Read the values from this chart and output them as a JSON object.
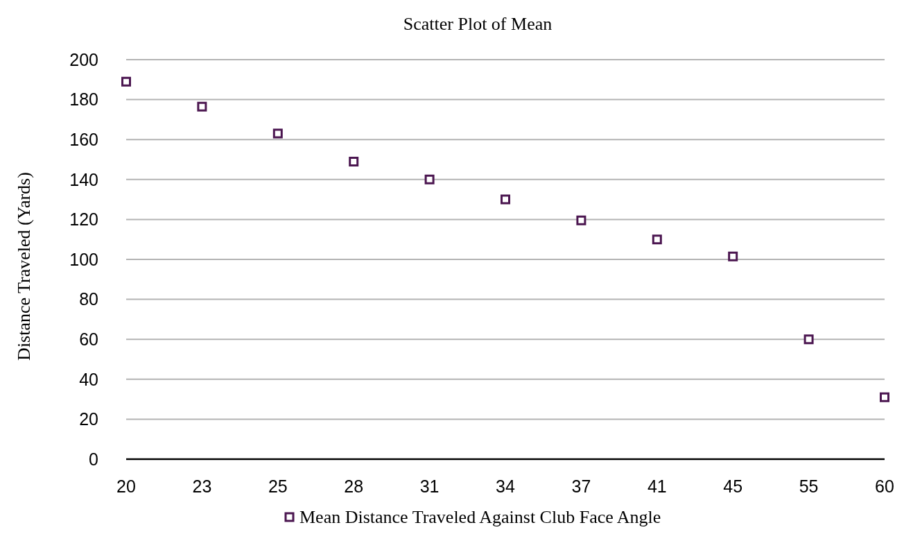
{
  "chart_data": {
    "type": "scatter",
    "title": "Scatter Plot of Mean",
    "ylabel": "Distance Traveled (Yards)",
    "categories": [
      "20",
      "23",
      "25",
      "28",
      "31",
      "34",
      "37",
      "41",
      "45",
      "55",
      "60"
    ],
    "series": [
      {
        "name": "Mean Distance Traveled Against Club Face Angle",
        "color": "#4b1650",
        "values": [
          189,
          176.5,
          163,
          149,
          140,
          130,
          119.5,
          110,
          101.5,
          60,
          31
        ]
      }
    ],
    "ylim": [
      0,
      200
    ],
    "yticks": [
      0,
      20,
      40,
      60,
      80,
      100,
      120,
      140,
      160,
      180,
      200
    ],
    "grid": "y",
    "legend": "bottom",
    "marker": "square"
  }
}
